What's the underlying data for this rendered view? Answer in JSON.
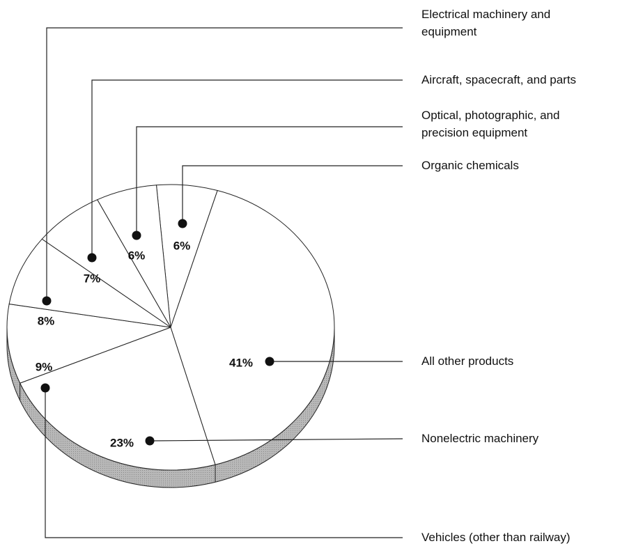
{
  "chart_data": {
    "type": "pie",
    "categories": [
      "Organic chemicals",
      "All other products",
      "Nonelectric machinery",
      "Vehicles (other than railway)",
      "Electrical machinery and equipment",
      "Aircraft, spacecraft, and parts",
      "Optical, photographic, and precision equipment"
    ],
    "values": [
      6,
      41,
      23,
      9,
      8,
      7,
      6
    ],
    "value_labels": [
      "6%",
      "41%",
      "23%",
      "9%",
      "8%",
      "7%",
      "6%"
    ],
    "color": "#ffffff"
  }
}
